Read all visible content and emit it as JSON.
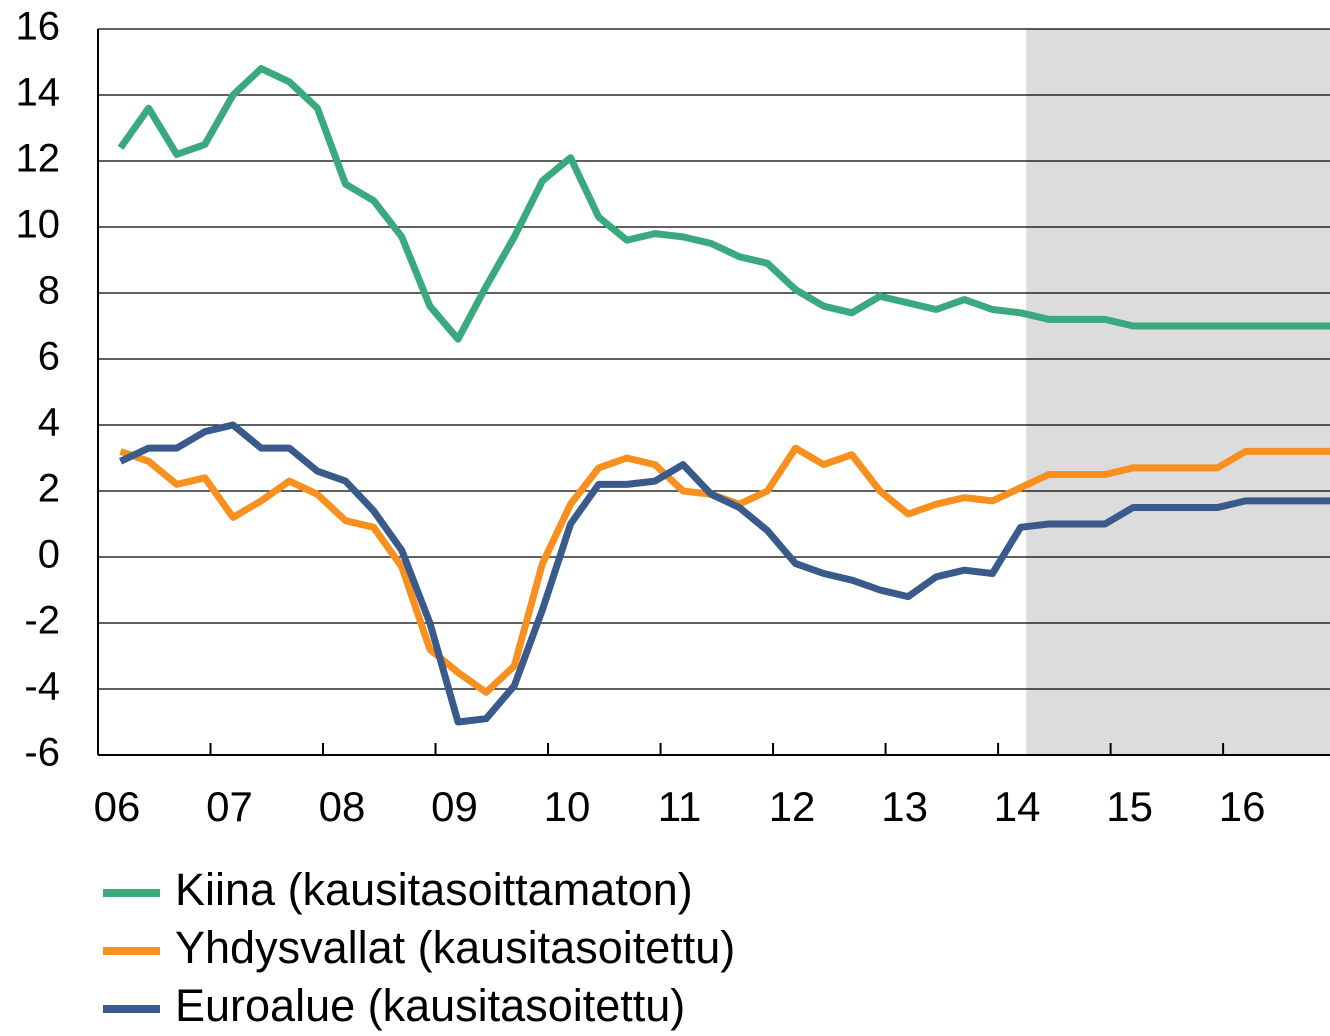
{
  "chart_data": {
    "type": "line",
    "x": [
      2006.2,
      2006.45,
      2006.7,
      2006.95,
      2007.2,
      2007.45,
      2007.7,
      2007.95,
      2008.2,
      2008.45,
      2008.7,
      2008.95,
      2009.2,
      2009.45,
      2009.7,
      2009.95,
      2010.2,
      2010.45,
      2010.7,
      2010.95,
      2011.2,
      2011.45,
      2011.7,
      2011.95,
      2012.2,
      2012.45,
      2012.7,
      2012.95,
      2013.2,
      2013.45,
      2013.7,
      2013.95,
      2014.2,
      2014.45,
      2014.7,
      2014.95,
      2015.2,
      2015.45,
      2015.7,
      2015.95,
      2016.2,
      2016.45,
      2016.7,
      2016.95
    ],
    "series": [
      {
        "name": "Kiina (kausitasoittamaton)",
        "color": "#3aaa7e",
        "values": [
          12.4,
          13.6,
          12.2,
          12.5,
          14.0,
          14.8,
          14.4,
          13.6,
          11.3,
          10.8,
          9.7,
          7.6,
          6.6,
          8.2,
          9.7,
          11.4,
          12.1,
          10.3,
          9.6,
          9.8,
          9.7,
          9.5,
          9.1,
          8.9,
          8.1,
          7.6,
          7.4,
          7.9,
          7.7,
          7.5,
          7.8,
          7.5,
          7.4,
          7.2,
          7.2,
          7.2,
          7.0,
          7.0,
          7.0,
          7.0,
          7.0,
          7.0,
          7.0,
          7.0
        ]
      },
      {
        "name": "Yhdysvallat (kausitasoitettu)",
        "color": "#f7901e",
        "values": [
          3.2,
          2.9,
          2.2,
          2.4,
          1.2,
          1.7,
          2.3,
          1.9,
          1.1,
          0.9,
          -0.3,
          -2.8,
          -3.5,
          -4.1,
          -3.3,
          -0.2,
          1.6,
          2.7,
          3.0,
          2.8,
          2.0,
          1.9,
          1.6,
          2.0,
          3.3,
          2.8,
          3.1,
          2.0,
          1.3,
          1.6,
          1.8,
          1.7,
          2.1,
          2.5,
          2.5,
          2.5,
          2.7,
          2.7,
          2.7,
          2.7,
          3.2,
          3.2,
          3.2,
          3.2
        ]
      },
      {
        "name": "Euroalue (kausitasoitettu)",
        "color": "#3a5a8c",
        "values": [
          2.9,
          3.3,
          3.3,
          3.8,
          4.0,
          3.3,
          3.3,
          2.6,
          2.3,
          1.4,
          0.2,
          -2.0,
          -5.0,
          -4.9,
          -3.9,
          -1.6,
          1.0,
          2.2,
          2.2,
          2.3,
          2.8,
          1.9,
          1.5,
          0.8,
          -0.2,
          -0.5,
          -0.7,
          -1.0,
          -1.2,
          -0.6,
          -0.4,
          -0.5,
          0.9,
          1.0,
          1.0,
          1.0,
          1.5,
          1.5,
          1.5,
          1.5,
          1.7,
          1.7,
          1.7,
          1.7
        ]
      }
    ],
    "xlim": [
      2006,
      2016.95
    ],
    "xticks": [
      {
        "value": 2006,
        "label": "06"
      },
      {
        "value": 2007,
        "label": "07"
      },
      {
        "value": 2008,
        "label": "08"
      },
      {
        "value": 2009,
        "label": "09"
      },
      {
        "value": 2010,
        "label": "10"
      },
      {
        "value": 2011,
        "label": "11"
      },
      {
        "value": 2012,
        "label": "12"
      },
      {
        "value": 2013,
        "label": "13"
      },
      {
        "value": 2014,
        "label": "14"
      },
      {
        "value": 2015,
        "label": "15"
      },
      {
        "value": 2016,
        "label": "16"
      }
    ],
    "ylim": [
      -6,
      16
    ],
    "yticks": [
      -6,
      -4,
      -2,
      0,
      2,
      4,
      6,
      8,
      10,
      12,
      14,
      16
    ],
    "grid": true,
    "forecast_region": [
      2014.25,
      2016.95
    ],
    "forecast_color": "#dcdcdc",
    "legend": "bottom"
  }
}
